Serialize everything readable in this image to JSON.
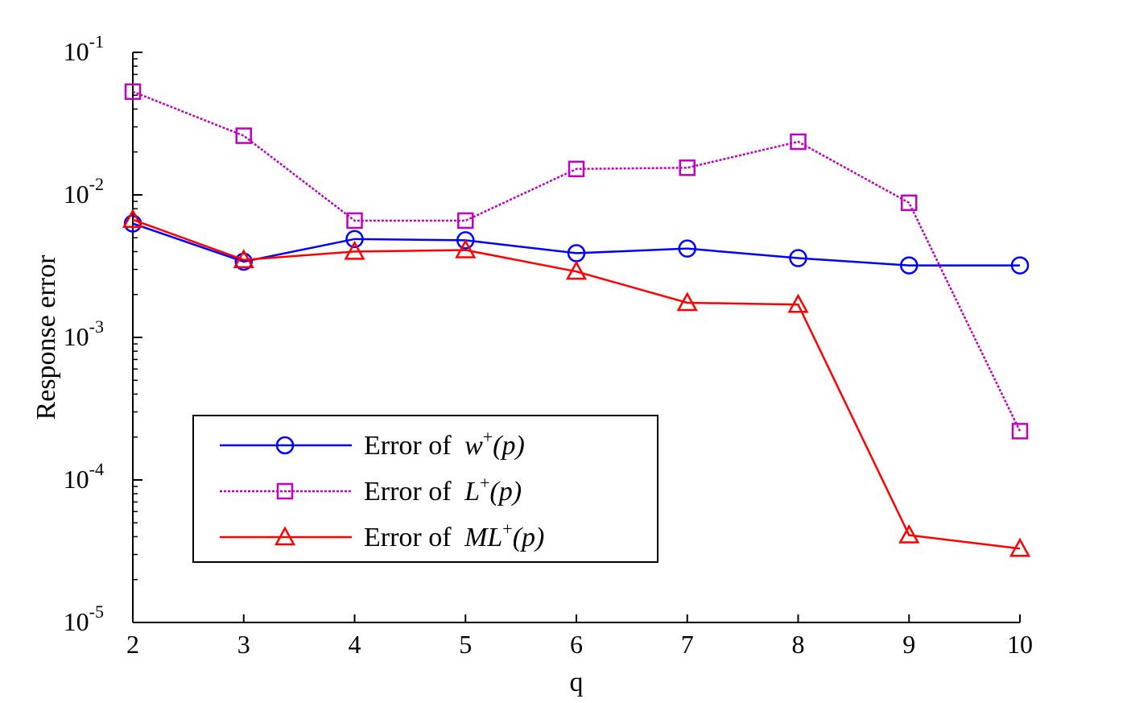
{
  "chart_data": {
    "type": "line",
    "xlabel": "q",
    "ylabel": "Response error",
    "yscale": "log",
    "xlim": [
      2,
      10
    ],
    "ylim": [
      1e-05,
      0.1
    ],
    "x": [
      2,
      3,
      4,
      5,
      6,
      7,
      8,
      9,
      10
    ],
    "xticks": [
      "2",
      "3",
      "4",
      "5",
      "6",
      "7",
      "8",
      "9",
      "10"
    ],
    "yticks": [
      {
        "base": "10",
        "exp": "-5",
        "value": 1e-05
      },
      {
        "base": "10",
        "exp": "-4",
        "value": 0.0001
      },
      {
        "base": "10",
        "exp": "-3",
        "value": 0.001
      },
      {
        "base": "10",
        "exp": "-2",
        "value": 0.01
      },
      {
        "base": "10",
        "exp": "-1",
        "value": 0.1
      }
    ],
    "legend_position": "lower-left",
    "series": [
      {
        "name": "Error of w+(p)",
        "label_prefix": "Error of ",
        "label_var": "w",
        "label_sup": "+",
        "label_arg": "(p)",
        "color": "#0000ff",
        "marker": "circle",
        "dash": "solid",
        "values": [
          0.0063,
          0.0034,
          0.0049,
          0.0048,
          0.0039,
          0.0042,
          0.0036,
          0.0032,
          0.0032
        ]
      },
      {
        "name": "Error of L+(p)",
        "label_prefix": "Error of ",
        "label_var": "L",
        "label_sup": "+",
        "label_arg": "(p)",
        "color": "#bf00bf",
        "marker": "square",
        "dash": "dotted",
        "values": [
          0.053,
          0.026,
          0.0066,
          0.0066,
          0.0152,
          0.0155,
          0.0236,
          0.0088,
          0.00022
        ]
      },
      {
        "name": "Error of ML+(p)",
        "label_prefix": "Error of ",
        "label_var": "ML",
        "label_sup": "+",
        "label_arg": "(p)",
        "color": "#ff0000",
        "marker": "triangle",
        "dash": "solid",
        "values": [
          0.0067,
          0.0035,
          0.004,
          0.0041,
          0.0029,
          0.00175,
          0.0017,
          4.1e-05,
          3.3e-05
        ]
      }
    ]
  }
}
